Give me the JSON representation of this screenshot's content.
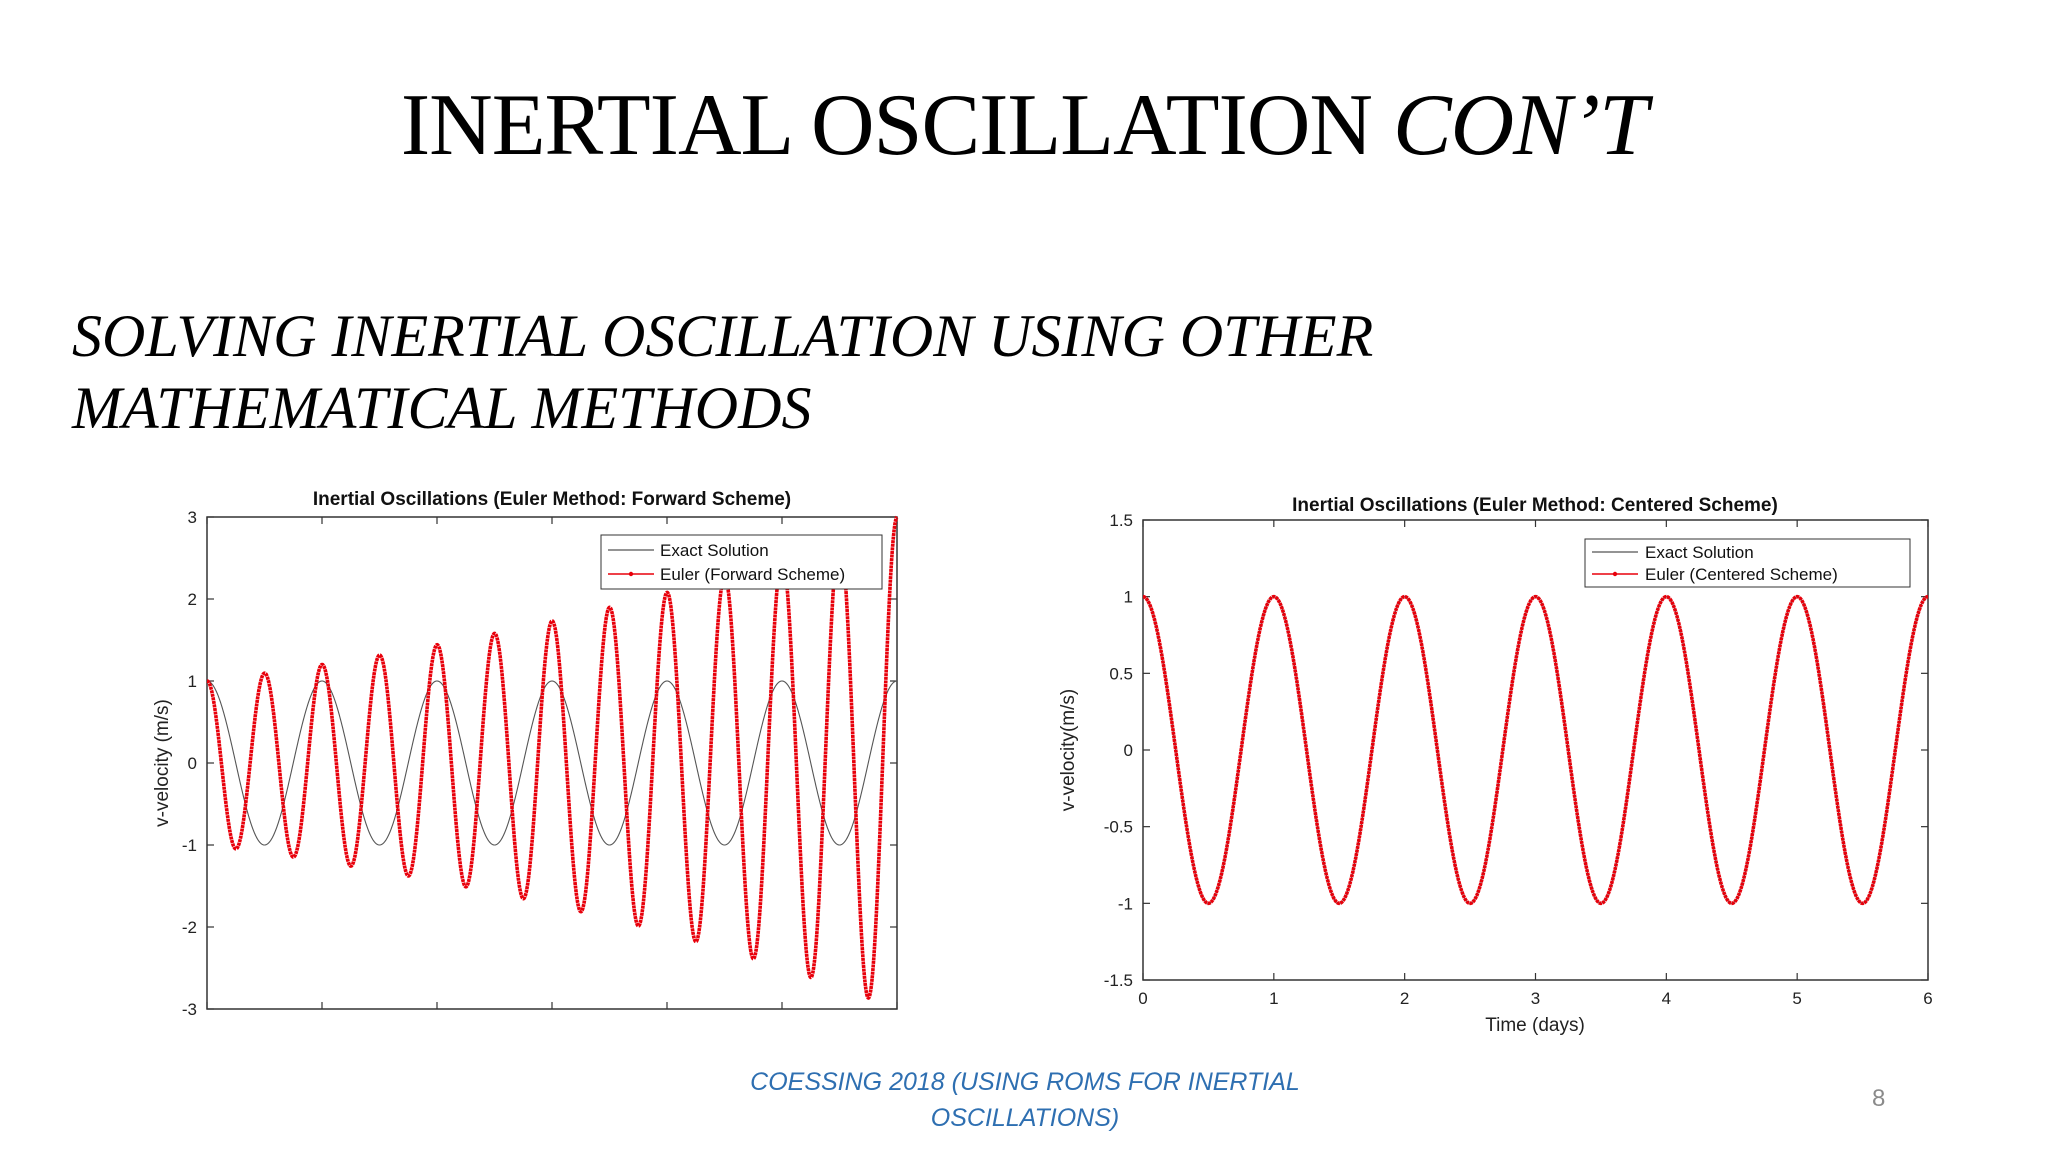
{
  "slide": {
    "title_main": "INERTIAL OSCILLATION",
    "title_italic": "CON’T",
    "subtitle_line1": "SOLVING INERTIAL OSCILLATION USING OTHER",
    "subtitle_line2": "MATHEMATICAL METHODS",
    "footer_line1": "COESSING 2018 (USING ROMS FOR INERTIAL",
    "footer_line2": "OSCILLATIONS)",
    "page_number": "8"
  },
  "colors": {
    "exact": "#555555",
    "euler": "#e8000b",
    "axis": "#333333",
    "footer": "#2e6fb1"
  },
  "chart_data": [
    {
      "type": "line",
      "title": "Inertial Oscillations (Euler Method: Forward Scheme)",
      "xlabel": "",
      "ylabel": "v-velocity (m/s)",
      "xlim": [
        0,
        6
      ],
      "ylim": [
        -3,
        3
      ],
      "yticks": [
        -3,
        -2,
        -1,
        0,
        1,
        2,
        3
      ],
      "ytick_labels": [
        "-3",
        "-2",
        "-1",
        "0",
        "1",
        "2",
        "3"
      ],
      "xticks": [
        0,
        1,
        2,
        3,
        4,
        5,
        6
      ],
      "xtick_labels": [],
      "legend": "top-right",
      "series": [
        {
          "name": "Exact Solution",
          "style": "thin-line",
          "period": 1.0,
          "amplitude_start": 1.0,
          "amplitude_end": 1.0,
          "peaks": [
            {
              "x": 0,
              "y": 1
            },
            {
              "x": 1,
              "y": 1
            },
            {
              "x": 2,
              "y": 1
            },
            {
              "x": 3,
              "y": 1
            },
            {
              "x": 4,
              "y": 1
            },
            {
              "x": 5,
              "y": 1
            },
            {
              "x": 6,
              "y": 1
            }
          ]
        },
        {
          "name": "Euler (Forward Scheme)",
          "style": "dotted-thick",
          "period": 0.5,
          "amplitude_start": 1.0,
          "amplitude_end": 3.0,
          "peaks": [
            {
              "x": 0.5,
              "y": 1.1
            },
            {
              "x": 1.0,
              "y": 1.2
            },
            {
              "x": 1.5,
              "y": 1.3
            },
            {
              "x": 2.0,
              "y": 1.45
            },
            {
              "x": 2.5,
              "y": 1.6
            },
            {
              "x": 3.0,
              "y": 1.75
            },
            {
              "x": 3.5,
              "y": 1.9
            },
            {
              "x": 4.0,
              "y": 2.1
            },
            {
              "x": 4.5,
              "y": 2.3
            },
            {
              "x": 5.0,
              "y": 2.5
            },
            {
              "x": 5.5,
              "y": 2.75
            },
            {
              "x": 6.0,
              "y": 3.0
            }
          ],
          "troughs": [
            {
              "x": 0.25,
              "y": -1.05
            },
            {
              "x": 0.75,
              "y": -1.15
            },
            {
              "x": 1.25,
              "y": -1.25
            },
            {
              "x": 1.75,
              "y": -1.38
            },
            {
              "x": 2.25,
              "y": -1.52
            },
            {
              "x": 2.75,
              "y": -1.65
            },
            {
              "x": 3.25,
              "y": -1.8
            },
            {
              "x": 3.75,
              "y": -1.98
            },
            {
              "x": 4.25,
              "y": -2.18
            },
            {
              "x": 4.75,
              "y": -2.38
            },
            {
              "x": 5.25,
              "y": -2.6
            },
            {
              "x": 5.75,
              "y": -2.85
            }
          ]
        }
      ]
    },
    {
      "type": "line",
      "title": "Inertial Oscillations (Euler Method: Centered Scheme)",
      "xlabel": "Time (days)",
      "ylabel": "v-velocity(m/s)",
      "xlim": [
        0,
        6
      ],
      "ylim": [
        -1.5,
        1.5
      ],
      "yticks": [
        -1.5,
        -1,
        -0.5,
        0,
        0.5,
        1,
        1.5
      ],
      "ytick_labels": [
        "-1.5",
        "-1",
        "-0.5",
        "0",
        "0.5",
        "1",
        "1.5"
      ],
      "xticks": [
        0,
        1,
        2,
        3,
        4,
        5,
        6
      ],
      "xtick_labels": [
        "0",
        "1",
        "2",
        "3",
        "4",
        "5",
        "6"
      ],
      "legend": "top-right",
      "series": [
        {
          "name": "Exact Solution",
          "style": "thin-line",
          "period": 1.0,
          "amplitude_start": 1.0,
          "amplitude_end": 1.0,
          "peaks": [
            {
              "x": 0,
              "y": 1
            },
            {
              "x": 1,
              "y": 1
            },
            {
              "x": 2,
              "y": 1
            },
            {
              "x": 3,
              "y": 1
            },
            {
              "x": 4,
              "y": 1
            },
            {
              "x": 5,
              "y": 1
            },
            {
              "x": 6,
              "y": 1
            }
          ]
        },
        {
          "name": "Euler (Centered Scheme)",
          "style": "dotted-thick",
          "period": 1.0,
          "amplitude_start": 1.0,
          "amplitude_end": 1.0,
          "peaks": [
            {
              "x": 0,
              "y": 1
            },
            {
              "x": 1,
              "y": 1
            },
            {
              "x": 2,
              "y": 1
            },
            {
              "x": 3,
              "y": 1
            },
            {
              "x": 4,
              "y": 1
            },
            {
              "x": 5,
              "y": 1
            },
            {
              "x": 6,
              "y": 1
            }
          ],
          "troughs": [
            {
              "x": 0.5,
              "y": -1
            },
            {
              "x": 1.5,
              "y": -1
            },
            {
              "x": 2.5,
              "y": -1
            },
            {
              "x": 3.5,
              "y": -1
            },
            {
              "x": 4.5,
              "y": -1
            },
            {
              "x": 5.5,
              "y": -1
            }
          ]
        }
      ]
    }
  ]
}
